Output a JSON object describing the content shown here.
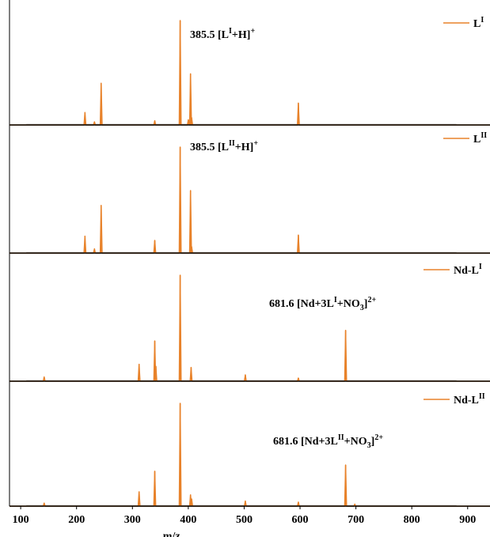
{
  "chart_data": {
    "type": "line",
    "xlabel": "m/z",
    "xlim": [
      80,
      940
    ],
    "xticks": [
      100,
      200,
      300,
      400,
      500,
      600,
      700,
      800,
      900
    ],
    "series_color": "#E8822A",
    "background_color": "#000000",
    "panels": [
      {
        "legend": {
          "main": "L",
          "sup": "I"
        },
        "annotation": {
          "value": "385.5",
          "parts": [
            {
              "t": "[L"
            },
            {
              "t": "I",
              "pos": "sup"
            },
            {
              "t": "+H]"
            },
            {
              "t": "+",
              "pos": "sup"
            }
          ]
        },
        "peaks": [
          [
            215,
            0.12
          ],
          [
            232,
            0.03
          ],
          [
            244,
            0.4
          ],
          [
            340,
            0.04
          ],
          [
            385.5,
            1.0
          ],
          [
            400,
            0.05
          ],
          [
            404,
            0.49
          ],
          [
            406,
            0.07
          ],
          [
            597,
            0.21
          ]
        ]
      },
      {
        "legend": {
          "main": "L",
          "sup": "II"
        },
        "annotation": {
          "value": "385.5",
          "parts": [
            {
              "t": "[L"
            },
            {
              "t": "II",
              "pos": "sup"
            },
            {
              "t": "+H]"
            },
            {
              "t": "+",
              "pos": "sup"
            }
          ]
        },
        "peaks": [
          [
            215,
            0.16
          ],
          [
            232,
            0.04
          ],
          [
            244,
            0.45
          ],
          [
            340,
            0.12
          ],
          [
            385.5,
            1.0
          ],
          [
            404,
            0.59
          ],
          [
            406,
            0.06
          ],
          [
            597,
            0.17
          ]
        ]
      },
      {
        "legend": {
          "main": "Nd-L",
          "sup": "I"
        },
        "annotation": {
          "value": "681.6",
          "parts": [
            {
              "t": "[Nd+3L"
            },
            {
              "t": "I",
              "pos": "sup"
            },
            {
              "t": "+NO"
            },
            {
              "t": "3",
              "pos": "sub"
            },
            {
              "t": "]"
            },
            {
              "t": "2+",
              "pos": "sup"
            }
          ]
        },
        "peaks": [
          [
            142,
            0.04
          ],
          [
            312,
            0.16
          ],
          [
            340,
            0.38
          ],
          [
            342,
            0.14
          ],
          [
            385.5,
            1.0
          ],
          [
            405,
            0.13
          ],
          [
            502,
            0.06
          ],
          [
            597,
            0.03
          ],
          [
            681.6,
            0.48
          ]
        ]
      },
      {
        "legend": {
          "main": "Nd-L",
          "sup": "II"
        },
        "annotation": {
          "value": "681.6",
          "parts": [
            {
              "t": "[Nd+3L"
            },
            {
              "t": "II",
              "pos": "sup"
            },
            {
              "t": "+NO"
            },
            {
              "t": "3",
              "pos": "sub"
            },
            {
              "t": "]"
            },
            {
              "t": "2+",
              "pos": "sup"
            }
          ]
        },
        "peaks": [
          [
            142,
            0.03
          ],
          [
            312,
            0.14
          ],
          [
            340,
            0.34
          ],
          [
            385.5,
            1.0
          ],
          [
            404,
            0.11
          ],
          [
            406,
            0.07
          ],
          [
            502,
            0.05
          ],
          [
            597,
            0.04
          ],
          [
            681.6,
            0.4
          ],
          [
            698,
            0.02
          ]
        ]
      }
    ]
  }
}
